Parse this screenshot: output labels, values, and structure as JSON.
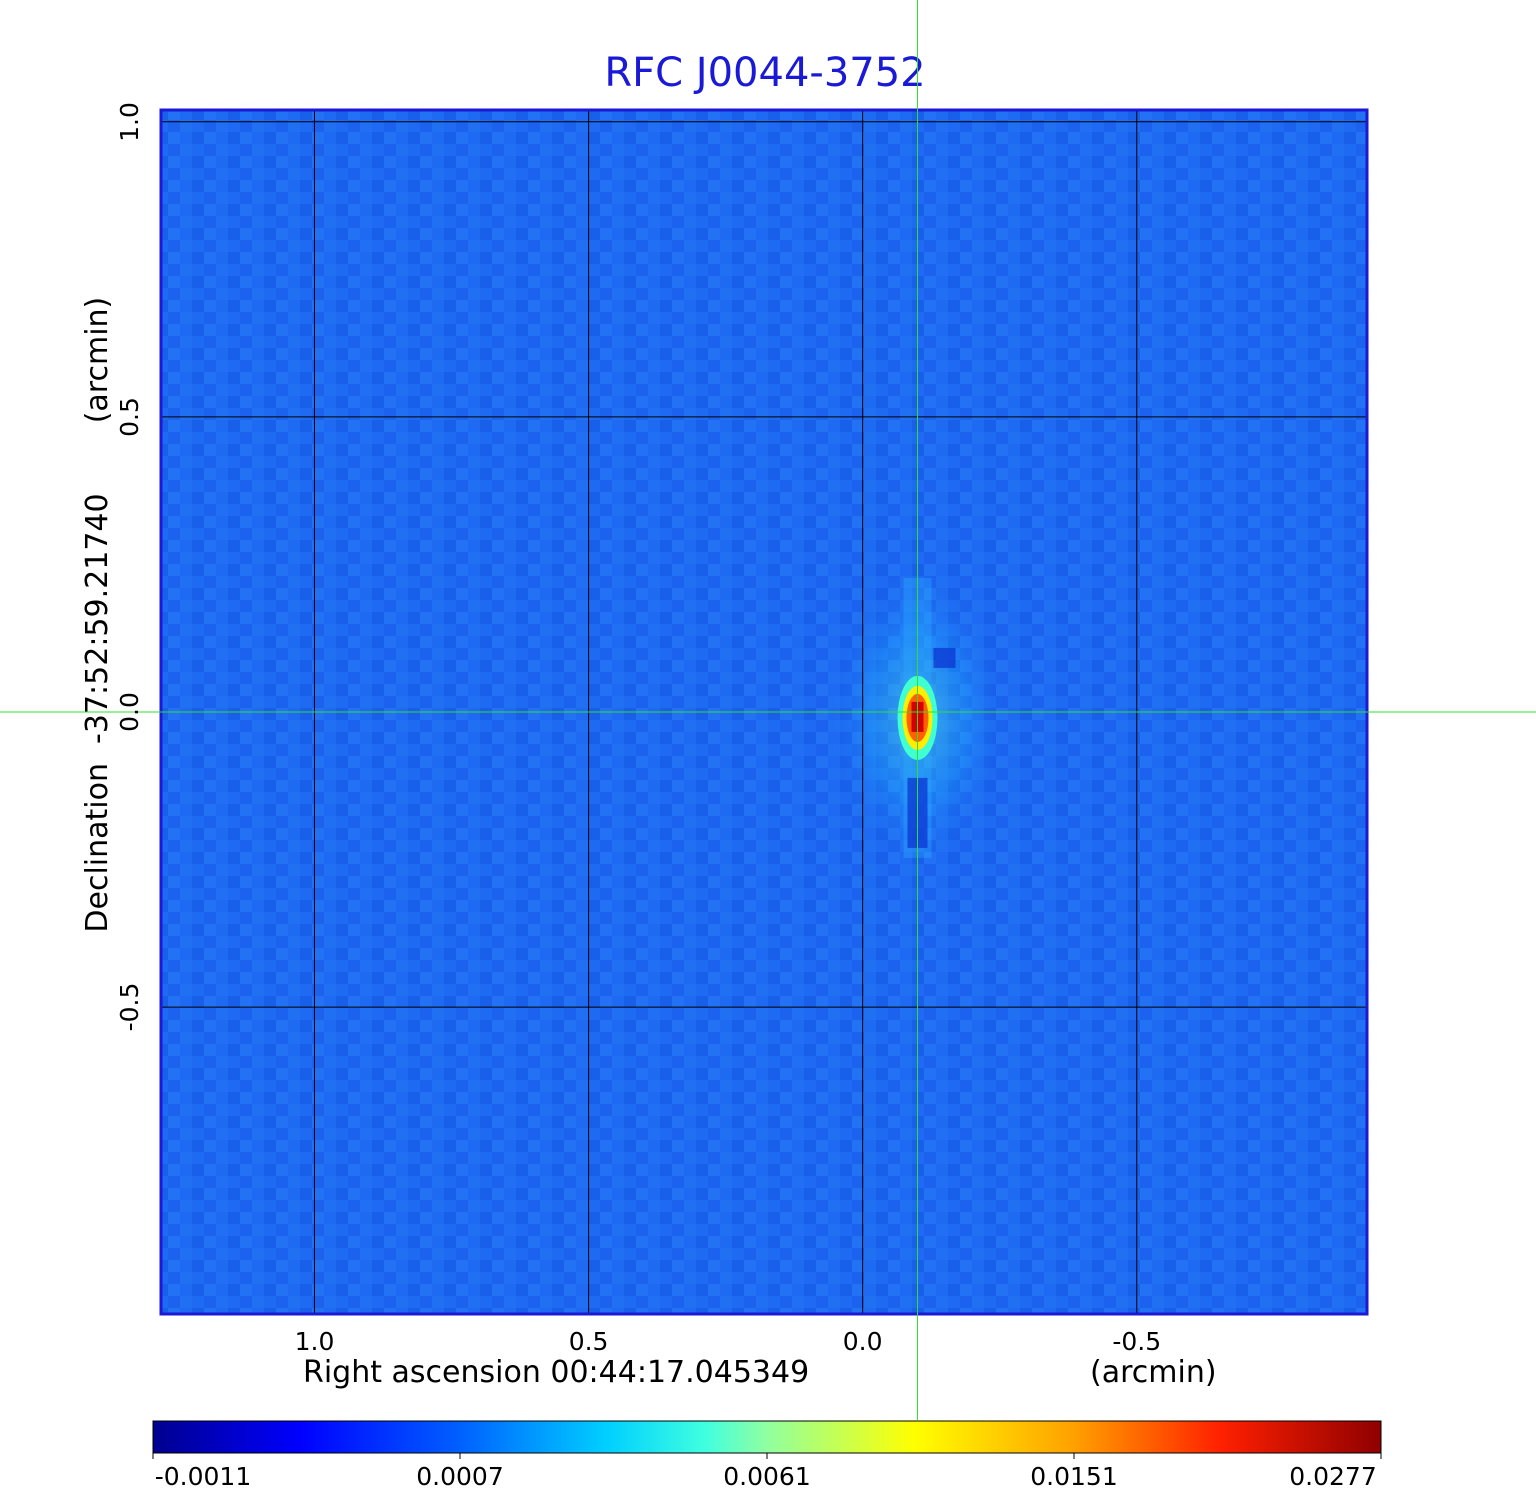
{
  "chart_data": {
    "type": "heatmap",
    "title": "RFC J0044-3752",
    "xlabel": "Right ascension  00:44:17.045349",
    "xunit": "(arcmin)",
    "ylabel": "Declination  -37:52:59.21740",
    "yunit": "(arcmin)",
    "xlim": [
      1.28,
      -0.92
    ],
    "ylim": [
      -1.02,
      1.02
    ],
    "x_reversed": true,
    "x_ticks": [
      1.0,
      0.5,
      0.0,
      -0.5
    ],
    "x_tick_labels": [
      "1.0",
      "0.5",
      "0.0",
      "-0.5"
    ],
    "y_ticks": [
      -0.5,
      0.0,
      0.5,
      1.0
    ],
    "y_tick_labels": [
      "-0.5",
      "0.0",
      "0.5",
      "1.0"
    ],
    "grid": true,
    "colormap": "jet",
    "colorbar": {
      "position": "bottom",
      "ticks": [
        -0.0011,
        0.0007,
        0.0061,
        0.0151,
        0.0277
      ],
      "tick_labels": [
        "-0.0011",
        "0.0007",
        "0.0061",
        "0.0151",
        "0.0277"
      ]
    },
    "source_peak": {
      "x": -0.1,
      "y": -0.01,
      "value": 0.0277
    },
    "crosshair": {
      "x": -0.1,
      "y": 0.0,
      "color": "#33dd33"
    },
    "colors": {
      "title": "#1a1ad6",
      "frame": "#1a1ad6",
      "grid": "#000000",
      "background_map": "#1e64f0"
    }
  }
}
